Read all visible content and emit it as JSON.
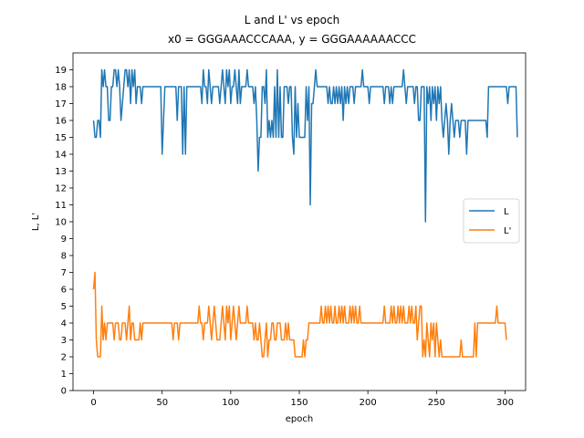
{
  "chart_data": {
    "type": "line",
    "title": "L and L' vs epoch",
    "subtitle": "x0 = GGGAAACCCAAA, y = GGGAAAAAACCC",
    "xlabel": "epoch",
    "ylabel": "L, L'",
    "xlim": [
      -15,
      315
    ],
    "ylim": [
      0,
      20
    ],
    "xticks": [
      0,
      50,
      100,
      150,
      200,
      250,
      300
    ],
    "yticks": [
      0,
      1,
      2,
      3,
      4,
      5,
      6,
      7,
      8,
      9,
      10,
      11,
      12,
      13,
      14,
      15,
      16,
      17,
      18,
      19
    ],
    "grid": false,
    "legend_position": "center-right",
    "series": [
      {
        "name": "L",
        "color": "#1f77b4",
        "values": [
          16,
          15,
          15,
          16,
          16,
          15,
          19,
          18,
          19,
          18,
          18,
          16,
          16,
          18,
          18,
          19,
          19,
          18,
          19,
          18,
          16,
          17,
          18,
          19,
          19,
          18,
          19,
          17,
          19,
          18,
          19,
          17,
          18,
          18,
          18,
          17,
          18,
          18,
          18,
          18,
          18,
          18,
          18,
          18,
          18,
          18,
          18,
          18,
          18,
          18,
          14,
          16,
          18,
          18,
          18,
          18,
          18,
          18,
          18,
          18,
          18,
          16,
          18,
          18,
          18,
          14,
          18,
          14,
          18,
          18,
          18,
          18,
          18,
          18,
          18,
          18,
          18,
          18,
          18,
          17,
          19,
          18,
          18,
          17,
          19,
          18,
          17,
          18,
          18,
          18,
          18,
          18,
          17,
          18,
          19,
          18,
          17,
          19,
          18,
          19,
          17,
          18,
          18,
          19,
          18,
          17,
          19,
          17,
          18,
          18,
          18,
          18,
          19,
          18,
          18,
          18,
          18,
          17,
          18,
          16,
          13,
          15,
          15,
          18,
          18,
          17,
          19,
          15,
          16,
          15,
          16,
          15,
          18,
          15,
          19,
          15,
          18,
          15,
          15,
          18,
          18,
          18,
          17,
          18,
          18,
          15,
          14,
          18,
          15,
          17,
          15,
          15,
          15,
          15,
          15,
          18,
          16,
          18,
          11,
          17,
          17,
          18,
          19,
          18,
          18,
          18,
          18,
          18,
          18,
          18,
          18,
          17,
          18,
          17,
          17,
          18,
          17,
          18,
          17,
          18,
          17,
          18,
          16,
          18,
          17,
          18,
          17,
          18,
          18,
          18,
          17,
          18,
          18,
          18,
          18,
          18,
          19,
          18,
          18,
          18,
          18,
          17,
          18,
          18,
          18,
          18,
          18,
          18,
          18,
          18,
          18,
          18,
          17,
          18,
          18,
          18,
          17,
          18,
          17,
          18,
          18,
          18,
          18,
          18,
          18,
          18,
          19,
          18,
          17,
          18,
          18,
          18,
          18,
          18,
          17,
          18,
          18,
          16,
          16,
          18,
          18,
          18,
          10,
          18,
          17,
          18,
          16,
          18,
          17,
          18,
          16,
          18,
          17,
          18,
          16,
          15,
          16,
          17,
          16,
          14,
          16,
          17,
          16,
          15,
          16,
          16,
          16,
          15,
          16,
          16,
          16,
          16,
          14,
          16,
          16,
          16,
          16,
          16,
          16,
          16,
          16,
          16,
          16,
          16,
          16,
          16,
          16,
          15,
          18,
          18,
          18,
          18,
          18,
          18,
          18,
          18,
          18,
          18,
          18,
          18,
          18,
          18,
          17,
          18,
          18,
          18,
          18,
          18,
          18,
          15
        ],
        "xstart": 0
      },
      {
        "name": "L'",
        "color": "#ff7f0e",
        "values": [
          6,
          7,
          3,
          2,
          2,
          2,
          5,
          3,
          4,
          3,
          4,
          4,
          4,
          4,
          4,
          3,
          4,
          4,
          4,
          3,
          3,
          4,
          4,
          4,
          3,
          4,
          5,
          3,
          4,
          4,
          3,
          3,
          3,
          3,
          4,
          3,
          4,
          4,
          4,
          4,
          4,
          4,
          4,
          4,
          4,
          4,
          4,
          4,
          4,
          4,
          4,
          4,
          4,
          4,
          4,
          4,
          4,
          4,
          3,
          4,
          4,
          4,
          3,
          4,
          4,
          4,
          4,
          4,
          4,
          4,
          4,
          4,
          4,
          4,
          4,
          4,
          4,
          5,
          4,
          4,
          3,
          4,
          4,
          4,
          5,
          4,
          3,
          4,
          5,
          4,
          3,
          3,
          3,
          4,
          5,
          4,
          3,
          5,
          4,
          5,
          3,
          4,
          5,
          4,
          3,
          4,
          5,
          4,
          4,
          4,
          4,
          4,
          5,
          4,
          4,
          4,
          4,
          3,
          4,
          3,
          3,
          4,
          3,
          2,
          2,
          3,
          4,
          2,
          3,
          3,
          4,
          4,
          3,
          3,
          4,
          4,
          4,
          3,
          3,
          3,
          4,
          3,
          4,
          3,
          3,
          3,
          3,
          2,
          2,
          2,
          2,
          2,
          2,
          3,
          2,
          3,
          3,
          4,
          4,
          4,
          4,
          4,
          4,
          4,
          4,
          4,
          5,
          4,
          4,
          5,
          4,
          5,
          4,
          5,
          4,
          4,
          5,
          4,
          4,
          5,
          4,
          5,
          4,
          5,
          4,
          4,
          4,
          5,
          4,
          5,
          4,
          5,
          4,
          4,
          5,
          4,
          4,
          4,
          4,
          4,
          4,
          4,
          4,
          4,
          4,
          4,
          4,
          4,
          4,
          4,
          4,
          4,
          5,
          4,
          4,
          4,
          4,
          5,
          4,
          5,
          4,
          4,
          5,
          4,
          5,
          4,
          5,
          4,
          4,
          4,
          5,
          4,
          5,
          4,
          4,
          5,
          3,
          4,
          5,
          5,
          2,
          3,
          2,
          4,
          3,
          2,
          4,
          3,
          4,
          2,
          4,
          3,
          2,
          3,
          2,
          2,
          2,
          2,
          2,
          2,
          2,
          2,
          2,
          2,
          2,
          2,
          2,
          2,
          3,
          2,
          2,
          2,
          2,
          2,
          2,
          2,
          2,
          2,
          4,
          2,
          4,
          4,
          4,
          4,
          4,
          4,
          4,
          4,
          4,
          4,
          4,
          4,
          4,
          4,
          5,
          4,
          4,
          4,
          4,
          4,
          4,
          3
        ],
        "xstart": 0
      }
    ]
  }
}
